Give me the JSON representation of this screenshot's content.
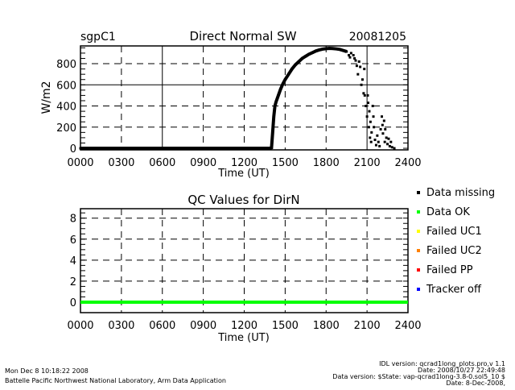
{
  "chart_data": [
    {
      "type": "scatter",
      "site": "sgpC1",
      "title": "Direct Normal SW",
      "date": "20081205",
      "xlabel": "Time (UT)",
      "ylabel": "W/m2",
      "xlim": [
        "0000",
        "2400"
      ],
      "ylim": [
        -15,
        968
      ],
      "x_ticks": [
        "0000",
        "0300",
        "0600",
        "0900",
        "1200",
        "1500",
        "1800",
        "2100",
        "2400"
      ],
      "y_ticks": [
        0,
        200,
        400,
        600,
        800
      ],
      "grid": true,
      "marker_color": "#000000",
      "points": [
        [
          "0000",
          0
        ],
        [
          "0100",
          0
        ],
        [
          "0200",
          0
        ],
        [
          "0300",
          0
        ],
        [
          "0400",
          0
        ],
        [
          "0500",
          0
        ],
        [
          "0600",
          0
        ],
        [
          "0700",
          0
        ],
        [
          "0800",
          0
        ],
        [
          "0900",
          0
        ],
        [
          "1000",
          0
        ],
        [
          "1100",
          0
        ],
        [
          "1200",
          0
        ],
        [
          "1300",
          0
        ],
        [
          "1350",
          0
        ],
        [
          "1400",
          5
        ],
        [
          "1405",
          150
        ],
        [
          "1410",
          300
        ],
        [
          "1415",
          400
        ],
        [
          "1420",
          440
        ],
        [
          "1430",
          500
        ],
        [
          "1440",
          560
        ],
        [
          "1450",
          610
        ],
        [
          "1500",
          650
        ],
        [
          "1515",
          700
        ],
        [
          "1530",
          750
        ],
        [
          "1545",
          790
        ],
        [
          "1600",
          820
        ],
        [
          "1615",
          850
        ],
        [
          "1630",
          870
        ],
        [
          "1645",
          890
        ],
        [
          "1700",
          905
        ],
        [
          "1715",
          920
        ],
        [
          "1730",
          930
        ],
        [
          "1745",
          938
        ],
        [
          "1800",
          942
        ],
        [
          "1815",
          945
        ],
        [
          "1830",
          943
        ],
        [
          "1845",
          940
        ],
        [
          "1900",
          935
        ],
        [
          "1915",
          925
        ],
        [
          "1930",
          915
        ],
        [
          "1940",
          880
        ],
        [
          "1945",
          860
        ],
        [
          "1950",
          900
        ],
        [
          "2000",
          880
        ],
        [
          "2005",
          850
        ],
        [
          "2010",
          830
        ],
        [
          "2015",
          780
        ],
        [
          "2020",
          700
        ],
        [
          "2025",
          820
        ],
        [
          "2030",
          770
        ],
        [
          "2035",
          600
        ],
        [
          "2040",
          650
        ],
        [
          "2045",
          520
        ],
        [
          "2048",
          750
        ],
        [
          "2050",
          500
        ],
        [
          "2055",
          400
        ],
        [
          "2100",
          300
        ],
        [
          "2103",
          500
        ],
        [
          "2105",
          430
        ],
        [
          "2108",
          200
        ],
        [
          "2110",
          350
        ],
        [
          "2113",
          100
        ],
        [
          "2115",
          250
        ],
        [
          "2118",
          60
        ],
        [
          "2120",
          150
        ],
        [
          "2125",
          400
        ],
        [
          "2128",
          300
        ],
        [
          "2130",
          200
        ],
        [
          "2135",
          80
        ],
        [
          "2140",
          30
        ],
        [
          "2145",
          120
        ],
        [
          "2150",
          60
        ],
        [
          "2155",
          20
        ],
        [
          "2200",
          180
        ],
        [
          "2205",
          300
        ],
        [
          "2208",
          220
        ],
        [
          "2210",
          140
        ],
        [
          "2215",
          260
        ],
        [
          "2218",
          60
        ],
        [
          "2220",
          180
        ],
        [
          "2225",
          100
        ],
        [
          "2230",
          40
        ],
        [
          "2235",
          90
        ],
        [
          "2240",
          20
        ],
        [
          "2245",
          60
        ],
        [
          "2250",
          10
        ],
        [
          "2300",
          0
        ]
      ]
    },
    {
      "type": "line",
      "title": "QC Values for DirN",
      "xlabel": "Time (UT)",
      "xlim": [
        "0000",
        "2400"
      ],
      "ylim": [
        -1,
        8.9
      ],
      "x_ticks": [
        "0000",
        "0300",
        "0600",
        "0900",
        "1200",
        "1500",
        "1800",
        "2100",
        "2400"
      ],
      "y_ticks": [
        0,
        2,
        4,
        6,
        8
      ],
      "grid": true,
      "series": [
        {
          "name": "Data OK",
          "color": "#00ff00",
          "x": [
            "0000",
            "2400"
          ],
          "values": [
            0,
            0
          ]
        }
      ],
      "legend_placement": "right",
      "legend": [
        {
          "label": "Data missing",
          "color": "#000000"
        },
        {
          "label": "Data OK",
          "color": "#00ff00"
        },
        {
          "label": "Failed UC1",
          "color": "#ffff00"
        },
        {
          "label": "Failed UC2",
          "color": "#ff8000"
        },
        {
          "label": "Failed PP",
          "color": "#ff0000"
        },
        {
          "label": "Tracker off",
          "color": "#0000ff"
        }
      ]
    }
  ],
  "footer": {
    "run_time": "Mon Dec  8 10:18:22 2008",
    "org": "Battelle Pacific Northwest National Laboratory, Arm Data Application",
    "idl_version": "IDL version: qcrad1long_plots.pro,v 1.1",
    "idl_date": "Date: 2008/10/27 22:49:48",
    "data_version": "Data version: $State: vap-qcrad1long-3.8-0.sol5_10 $",
    "data_date": "Date: 8-Dec-2008,"
  }
}
